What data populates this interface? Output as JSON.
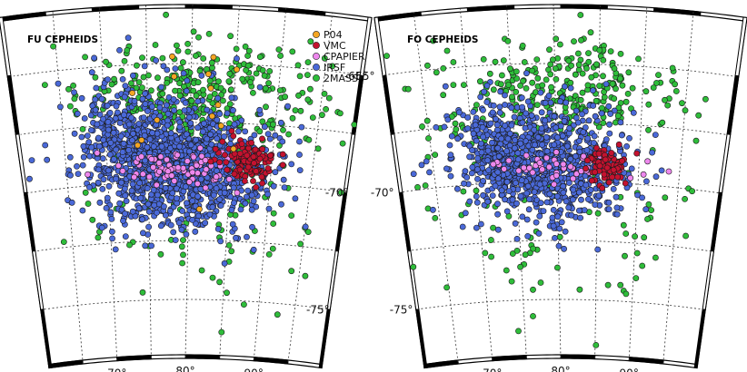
{
  "chart_data": [
    {
      "type": "scatter",
      "title": "FU CEPHEIDS",
      "projection": "polar sky map (south ecliptic/galactic pole region of the LMC)",
      "ra_ticks": [
        "90°",
        "80°",
        "70°"
      ],
      "dec_ticks": [
        "-65°",
        "-70°",
        "-75°"
      ],
      "ra_range_deg": [
        100,
        60
      ],
      "dec_range_deg": [
        -62.5,
        -77.5
      ],
      "legend_position": "top-right",
      "legend": [
        {
          "name": "P04",
          "color": "#f5a623"
        },
        {
          "name": "VMC",
          "color": "#c4122f"
        },
        {
          "name": "CPAPIER",
          "color": "#ee88ee"
        },
        {
          "name": "IRSF",
          "color": "#4a69d8"
        },
        {
          "name": "2MASS",
          "color": "#2ebd3a"
        }
      ],
      "series": [
        {
          "name": "2MASS",
          "description": "broad ring around the LMC bar, dense to the north",
          "approx_count": 420
        },
        {
          "name": "IRSF",
          "description": "LMC bar and inner disc",
          "approx_count": 1400
        },
        {
          "name": "CPAPIER",
          "description": "central bar strip",
          "approx_count": 80
        },
        {
          "name": "VMC",
          "description": "north-east end of the bar",
          "approx_count": 120
        },
        {
          "name": "P04",
          "description": "scattered around the north and east",
          "approx_count": 15
        }
      ]
    },
    {
      "type": "scatter",
      "title": "FO CEPHEIDS",
      "projection": "polar sky map (south ecliptic/galactic pole region of the LMC)",
      "ra_ticks": [
        "90°",
        "80°",
        "70°"
      ],
      "dec_ticks": [
        "-65°",
        "-70°",
        "-75°"
      ],
      "ra_range_deg": [
        100,
        60
      ],
      "dec_range_deg": [
        -62.5,
        -77.5
      ],
      "series": [
        {
          "name": "2MASS",
          "description": "ring to the north plus scattered outliers",
          "approx_count": 380
        },
        {
          "name": "IRSF",
          "description": "LMC bar and inner disc",
          "approx_count": 1000
        },
        {
          "name": "CPAPIER",
          "description": "central bar strip",
          "approx_count": 50
        },
        {
          "name": "VMC",
          "description": "north-east end of the bar",
          "approx_count": 80
        },
        {
          "name": "P04",
          "description": "none visible",
          "approx_count": 0
        }
      ]
    }
  ]
}
